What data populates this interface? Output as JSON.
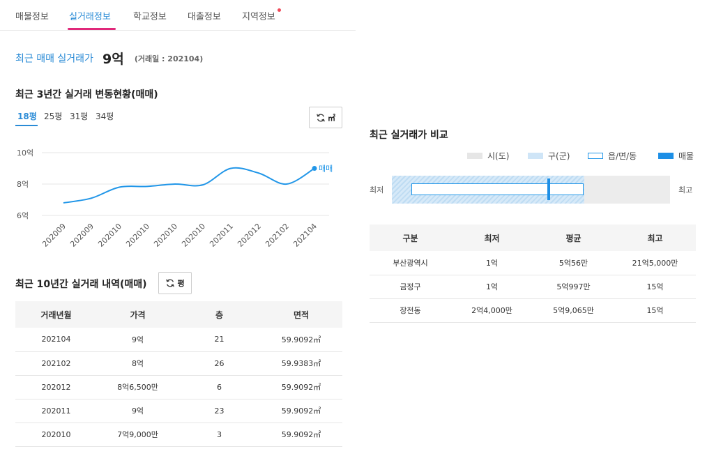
{
  "tabs": [
    {
      "label": "매물정보",
      "active": false
    },
    {
      "label": "실거래정보",
      "active": true
    },
    {
      "label": "학교정보",
      "active": false
    },
    {
      "label": "대출정보",
      "active": false
    },
    {
      "label": "지역정보",
      "active": false,
      "dot": true
    }
  ],
  "headline": {
    "label": "최근 매매 실거래가",
    "price": "9억",
    "date": "(거래일 : 202104)"
  },
  "trend": {
    "title": "최근 3년간 실거래 변동현황(매매)",
    "size_tabs": [
      "18평",
      "25평",
      "31평",
      "34평"
    ],
    "selected_size": "18평",
    "unit_button": "㎡"
  },
  "chart_data": {
    "type": "line",
    "x": [
      "202009",
      "202009",
      "202010",
      "202010",
      "202010",
      "202010",
      "202011",
      "202012",
      "202102",
      "202104"
    ],
    "series": [
      {
        "name": "매매",
        "values": [
          6.8,
          7.1,
          7.8,
          7.85,
          8.0,
          7.95,
          9.0,
          8.7,
          8.0,
          9.0
        ],
        "color": "#2196e8"
      }
    ],
    "y_ticks": [
      "6억",
      "8억",
      "10억"
    ],
    "ylim": [
      6,
      10
    ],
    "grid": true
  },
  "history": {
    "title": "최근 10년간 실거래 내역(매매)",
    "unit_button": "평",
    "columns": [
      "거래년월",
      "가격",
      "층",
      "면적"
    ],
    "rows": [
      [
        "202104",
        "9억",
        "21",
        "59.9092㎡"
      ],
      [
        "202102",
        "8억",
        "26",
        "59.9383㎡"
      ],
      [
        "202012",
        "8억6,500만",
        "6",
        "59.9092㎡"
      ],
      [
        "202011",
        "9억",
        "23",
        "59.9092㎡"
      ],
      [
        "202010",
        "7억9,000만",
        "3",
        "59.9092㎡"
      ]
    ]
  },
  "compare": {
    "title": "최근 실거래가 비교",
    "legend": [
      "시(도)",
      "구(군)",
      "읍/면/동",
      "매물"
    ],
    "colors": {
      "si": "#e6e6e6",
      "gu": "#cfe5f7",
      "dong": "#2196e8",
      "listing": "#1d8fe6"
    },
    "min_label": "최저",
    "max_label": "최고",
    "columns": [
      "구분",
      "최저",
      "평균",
      "최고"
    ],
    "rows": [
      [
        "부산광역시",
        "1억",
        "5억56만",
        "21억5,000만"
      ],
      [
        "금정구",
        "1억",
        "5억997만",
        "15억"
      ],
      [
        "장전동",
        "2억4,000만",
        "5억9,065만",
        "15억"
      ]
    ]
  }
}
